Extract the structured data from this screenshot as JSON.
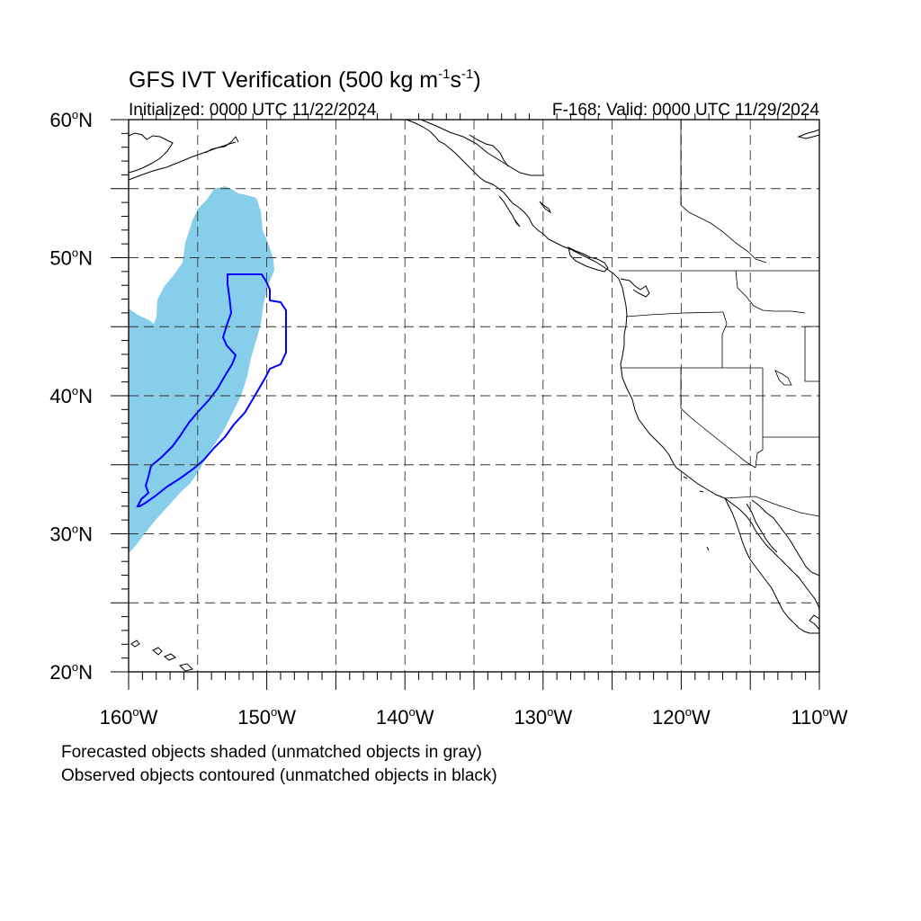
{
  "title": {
    "main": "GFS IVT Verification (500 kg m",
    "unit_exp1": "-1",
    "unit_mid": "s",
    "unit_exp2": "-1",
    "unit_end": ")"
  },
  "subtitle_left": "Initialized: 0000 UTC 11/22/2024",
  "subtitle_right": "F-168: Valid: 0000 UTC 11/29/2024",
  "map": {
    "projection": "lat-lon",
    "lon_range": [
      -160,
      -110
    ],
    "lat_range": [
      20,
      60
    ],
    "grid": "dashed",
    "lat_labels": [
      {
        "deg": "60",
        "suffix": "N",
        "lat": 60
      },
      {
        "deg": "50",
        "suffix": "N",
        "lat": 50
      },
      {
        "deg": "40",
        "suffix": "N",
        "lat": 40
      },
      {
        "deg": "30",
        "suffix": "N",
        "lat": 30
      },
      {
        "deg": "20",
        "suffix": "N",
        "lat": 20
      }
    ],
    "lon_labels": [
      {
        "deg": "160",
        "suffix": "W",
        "lon": -160
      },
      {
        "deg": "150",
        "suffix": "W",
        "lon": -150
      },
      {
        "deg": "140",
        "suffix": "W",
        "lon": -140
      },
      {
        "deg": "130",
        "suffix": "W",
        "lon": -130
      },
      {
        "deg": "120",
        "suffix": "W",
        "lon": -120
      },
      {
        "deg": "110",
        "suffix": "W",
        "lon": -110
      }
    ],
    "forecast_object_color": "#87ceeb",
    "observed_contour_color": "#0000ff",
    "coastline_color": "#000000"
  },
  "notes": {
    "line1": "Forecasted objects shaded (unmatched objects in gray)",
    "line2": "Observed objects contoured (unmatched objects in black)"
  }
}
